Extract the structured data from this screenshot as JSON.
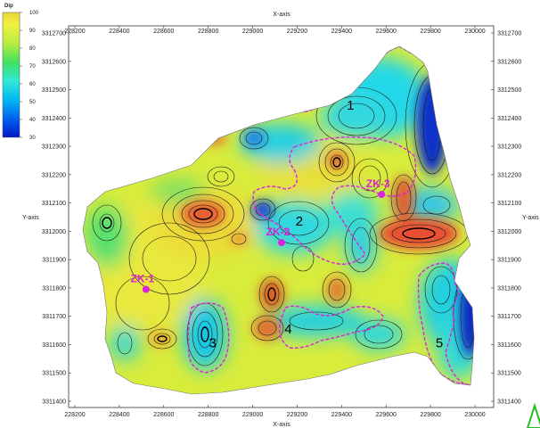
{
  "chart_data": {
    "type": "heatmap",
    "subtype": "contour-map",
    "colorbar": {
      "title": "Dip",
      "ticks": [
        30,
        40,
        50,
        60,
        70,
        80,
        90,
        100
      ],
      "range": [
        30,
        100
      ],
      "colors": [
        "#0018c8",
        "#0060f0",
        "#00b8f0",
        "#30e8d8",
        "#40e060",
        "#b8ec40",
        "#f0f040",
        "#e8d838"
      ]
    },
    "xlabel": "X-axis",
    "ylabel": "Y-axis",
    "xlim": [
      228200,
      230050
    ],
    "ylim": [
      3311385,
      3312810
    ],
    "xticks": [
      228200,
      228400,
      228600,
      228800,
      229000,
      229200,
      229400,
      229600,
      229800,
      230000
    ],
    "yticks": [
      3311400,
      3311500,
      3311600,
      3311700,
      3311800,
      3311900,
      3312000,
      3312100,
      3312200,
      3312300,
      3312400,
      3312500,
      3312600,
      3312700
    ],
    "zones": [
      {
        "label": "1",
        "x": 229440,
        "y": 3312430
      },
      {
        "label": "2",
        "x": 229210,
        "y": 3312020
      },
      {
        "label": "3",
        "x": 228820,
        "y": 3311590
      },
      {
        "label": "4",
        "x": 229160,
        "y": 3311640
      },
      {
        "label": "5",
        "x": 229840,
        "y": 3311590
      }
    ],
    "wells": [
      {
        "label": "ZK-1",
        "x": 228520,
        "y": 3311795
      },
      {
        "label": "ZK-2",
        "x": 229130,
        "y": 3311960
      },
      {
        "label": "ZK-3",
        "x": 229580,
        "y": 3312130
      }
    ],
    "colors": {
      "boundary": "#dd22dd",
      "well": "#dd22dd",
      "arrow": "#22bb22"
    }
  }
}
